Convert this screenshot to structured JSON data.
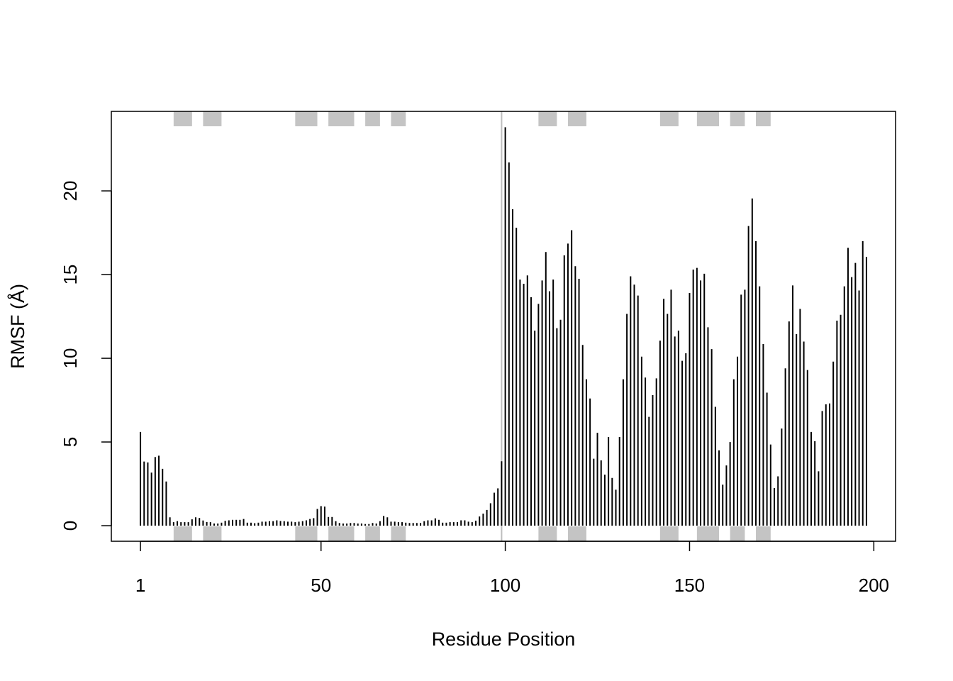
{
  "chart_data": {
    "type": "bar",
    "style": "vertical lines (type h)",
    "title": "",
    "xlabel": "Residue Position",
    "ylabel": "RMSF (Å)",
    "xlim": [
      -6.9,
      205.9
    ],
    "ylim": [
      -0.93,
      24.75
    ],
    "xticks": [
      1,
      50,
      100,
      150,
      200
    ],
    "yticks": [
      0,
      5,
      10,
      15,
      20
    ],
    "grid": false,
    "bar_color": "#000000",
    "sse_color": "#C4C4C4",
    "chain_break_line": {
      "x": 99,
      "color": "#BEBEBE"
    },
    "sse_segments": [
      [
        10,
        15
      ],
      [
        18,
        23
      ],
      [
        43,
        49
      ],
      [
        52,
        59
      ],
      [
        62,
        66
      ],
      [
        69,
        73
      ],
      [
        109,
        114
      ],
      [
        117,
        122
      ],
      [
        142,
        147
      ],
      [
        152,
        158
      ],
      [
        161,
        165
      ],
      [
        168,
        172
      ]
    ],
    "x_start": 1,
    "values": [
      5.6,
      3.83,
      3.78,
      3.17,
      4.1,
      4.18,
      3.4,
      2.64,
      0.5,
      0.21,
      0.27,
      0.21,
      0.21,
      0.21,
      0.38,
      0.5,
      0.46,
      0.31,
      0.22,
      0.21,
      0.13,
      0.13,
      0.18,
      0.29,
      0.32,
      0.35,
      0.35,
      0.35,
      0.4,
      0.18,
      0.18,
      0.15,
      0.18,
      0.24,
      0.24,
      0.27,
      0.27,
      0.32,
      0.28,
      0.27,
      0.24,
      0.24,
      0.21,
      0.24,
      0.27,
      0.32,
      0.4,
      0.45,
      1.0,
      1.17,
      1.14,
      0.52,
      0.52,
      0.27,
      0.16,
      0.13,
      0.13,
      0.16,
      0.16,
      0.13,
      0.13,
      0.1,
      0.1,
      0.16,
      0.13,
      0.27,
      0.58,
      0.5,
      0.24,
      0.24,
      0.21,
      0.21,
      0.18,
      0.16,
      0.16,
      0.16,
      0.16,
      0.27,
      0.32,
      0.32,
      0.44,
      0.35,
      0.18,
      0.18,
      0.21,
      0.21,
      0.21,
      0.32,
      0.32,
      0.24,
      0.21,
      0.3,
      0.55,
      0.72,
      0.94,
      1.34,
      1.97,
      2.23,
      3.85,
      23.8,
      21.7,
      18.9,
      17.8,
      14.7,
      14.45,
      14.95,
      13.65,
      11.65,
      13.25,
      14.65,
      16.35,
      14.0,
      14.7,
      11.8,
      12.3,
      16.15,
      16.85,
      17.65,
      15.5,
      14.75,
      10.8,
      8.75,
      7.6,
      4.0,
      5.55,
      3.9,
      3.05,
      5.3,
      2.85,
      2.15,
      5.3,
      8.75,
      12.65,
      14.9,
      14.4,
      13.75,
      10.1,
      8.85,
      6.5,
      7.8,
      8.8,
      11.05,
      13.55,
      12.65,
      14.1,
      11.3,
      11.65,
      9.85,
      10.3,
      13.9,
      15.3,
      15.4,
      14.65,
      15.05,
      11.85,
      10.55,
      7.1,
      4.5,
      2.45,
      3.6,
      5.0,
      8.75,
      10.1,
      13.8,
      14.1,
      17.9,
      19.55,
      17.0,
      14.3,
      10.85,
      7.95,
      4.85,
      2.25,
      2.95,
      5.8,
      9.4,
      12.2,
      14.35,
      11.45,
      12.95,
      11.0,
      9.3,
      5.6,
      5.05,
      3.25,
      6.85,
      7.25,
      7.3,
      9.8,
      12.25,
      12.6,
      14.3,
      16.6,
      14.85,
      15.7,
      14.05,
      17.0,
      16.05
    ]
  }
}
